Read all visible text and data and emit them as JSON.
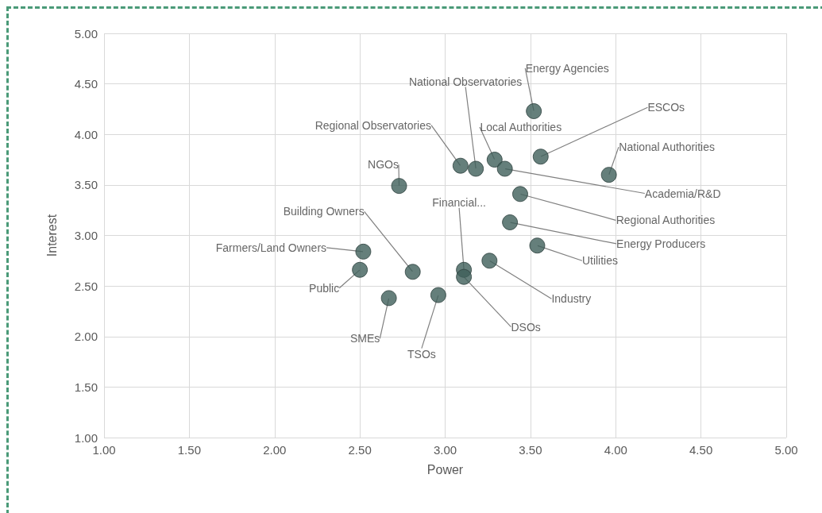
{
  "chart_data": {
    "type": "scatter",
    "xlabel": "Power",
    "ylabel": "Interest",
    "x": [
      3.52,
      3.56,
      3.96,
      3.09,
      3.18,
      3.29,
      3.35,
      2.73,
      3.44,
      3.38,
      3.54,
      2.52,
      2.5,
      2.81,
      3.11,
      3.11,
      3.26,
      2.67,
      2.96
    ],
    "series": [
      {
        "color": "#3f5f5a",
        "values": [
          4.23,
          3.78,
          3.6,
          3.69,
          3.66,
          3.75,
          3.66,
          3.49,
          3.41,
          3.13,
          2.9,
          2.84,
          2.66,
          2.64,
          2.66,
          2.59,
          2.75,
          2.38,
          2.41
        ]
      }
    ],
    "annotations": [
      {
        "text": "Energy Agencies",
        "x": 3.52,
        "y": 4.23
      },
      {
        "text": "ESCOs",
        "x": 3.56,
        "y": 3.78
      },
      {
        "text": "National Authorities",
        "x": 3.96,
        "y": 3.6
      },
      {
        "text": "Regional Observatories",
        "x": 3.09,
        "y": 3.69
      },
      {
        "text": "National Observatories",
        "x": 3.18,
        "y": 3.66
      },
      {
        "text": "Local Authorities",
        "x": 3.29,
        "y": 3.75
      },
      {
        "text": "Academia/R&D",
        "x": 3.35,
        "y": 3.66
      },
      {
        "text": "NGOs",
        "x": 2.73,
        "y": 3.49
      },
      {
        "text": "Regional Authorities",
        "x": 3.44,
        "y": 3.41
      },
      {
        "text": "Energy Producers",
        "x": 3.38,
        "y": 3.13
      },
      {
        "text": "Utilities",
        "x": 3.54,
        "y": 2.9
      },
      {
        "text": "Farmers/Land Owners",
        "x": 2.52,
        "y": 2.84
      },
      {
        "text": "Public",
        "x": 2.5,
        "y": 2.66
      },
      {
        "text": "Building Owners",
        "x": 2.81,
        "y": 2.64
      },
      {
        "text": "Financial...",
        "x": 3.11,
        "y": 2.66
      },
      {
        "text": "DSOs",
        "x": 3.11,
        "y": 2.59
      },
      {
        "text": "Industry",
        "x": 3.26,
        "y": 2.75
      },
      {
        "text": "SMEs",
        "x": 2.67,
        "y": 2.38
      },
      {
        "text": "TSOs",
        "x": 2.96,
        "y": 2.41
      }
    ],
    "xlim": [
      1,
      5
    ],
    "ylim": [
      1,
      5
    ],
    "xticks": [
      {
        "value": 1,
        "label": "1.00"
      },
      {
        "value": 1.5,
        "label": "1.50"
      },
      {
        "value": 2,
        "label": "2.00"
      },
      {
        "value": 2.5,
        "label": "2.50"
      },
      {
        "value": 3,
        "label": "3.00"
      },
      {
        "value": 3.5,
        "label": "3.50"
      },
      {
        "value": 4,
        "label": "4.00"
      },
      {
        "value": 4.5,
        "label": "4.50"
      },
      {
        "value": 5,
        "label": "5.00"
      }
    ],
    "yticks": [
      {
        "value": 1,
        "label": "1.00"
      },
      {
        "value": 1.5,
        "label": "1.50"
      },
      {
        "value": 2,
        "label": "2.00"
      },
      {
        "value": 2.5,
        "label": "2.50"
      },
      {
        "value": 3,
        "label": "3.00"
      },
      {
        "value": 3.5,
        "label": "3.50"
      },
      {
        "value": 4,
        "label": "4.00"
      },
      {
        "value": 4.5,
        "label": "4.50"
      },
      {
        "value": 5,
        "label": "5.00"
      }
    ],
    "grid": true,
    "marker": "circle"
  }
}
